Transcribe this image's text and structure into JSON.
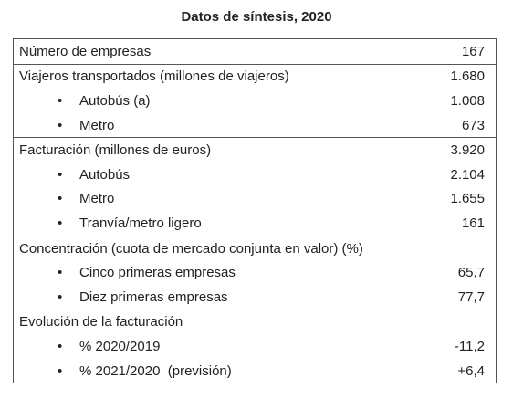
{
  "title": "Datos de síntesis, 2020",
  "sections": [
    {
      "label": "Número de empresas",
      "value": "167"
    },
    {
      "label": "Viajeros transportados (millones de viajeros)",
      "value": "1.680",
      "items": [
        {
          "label": "Autobús (a)",
          "value": "1.008"
        },
        {
          "label": "Metro",
          "value": "673"
        }
      ]
    },
    {
      "label": "Facturación (millones de euros)",
      "value": "3.920",
      "items": [
        {
          "label": "Autobús",
          "value": "2.104"
        },
        {
          "label": "Metro",
          "value": "1.655"
        },
        {
          "label": "Tranvía/metro ligero",
          "value": "161"
        }
      ]
    },
    {
      "label": "Concentración (cuota de mercado conjunta en valor) (%)",
      "items": [
        {
          "label": "Cinco primeras empresas",
          "value": "65,7"
        },
        {
          "label": "Diez primeras empresas",
          "value": "77,7"
        }
      ]
    },
    {
      "label": "Evolución de la facturación",
      "items": [
        {
          "label": "% 2020/2019",
          "value": "-11,2"
        },
        {
          "label": "% 2021/2020  (previsión)",
          "value": "+6,4"
        }
      ]
    }
  ]
}
